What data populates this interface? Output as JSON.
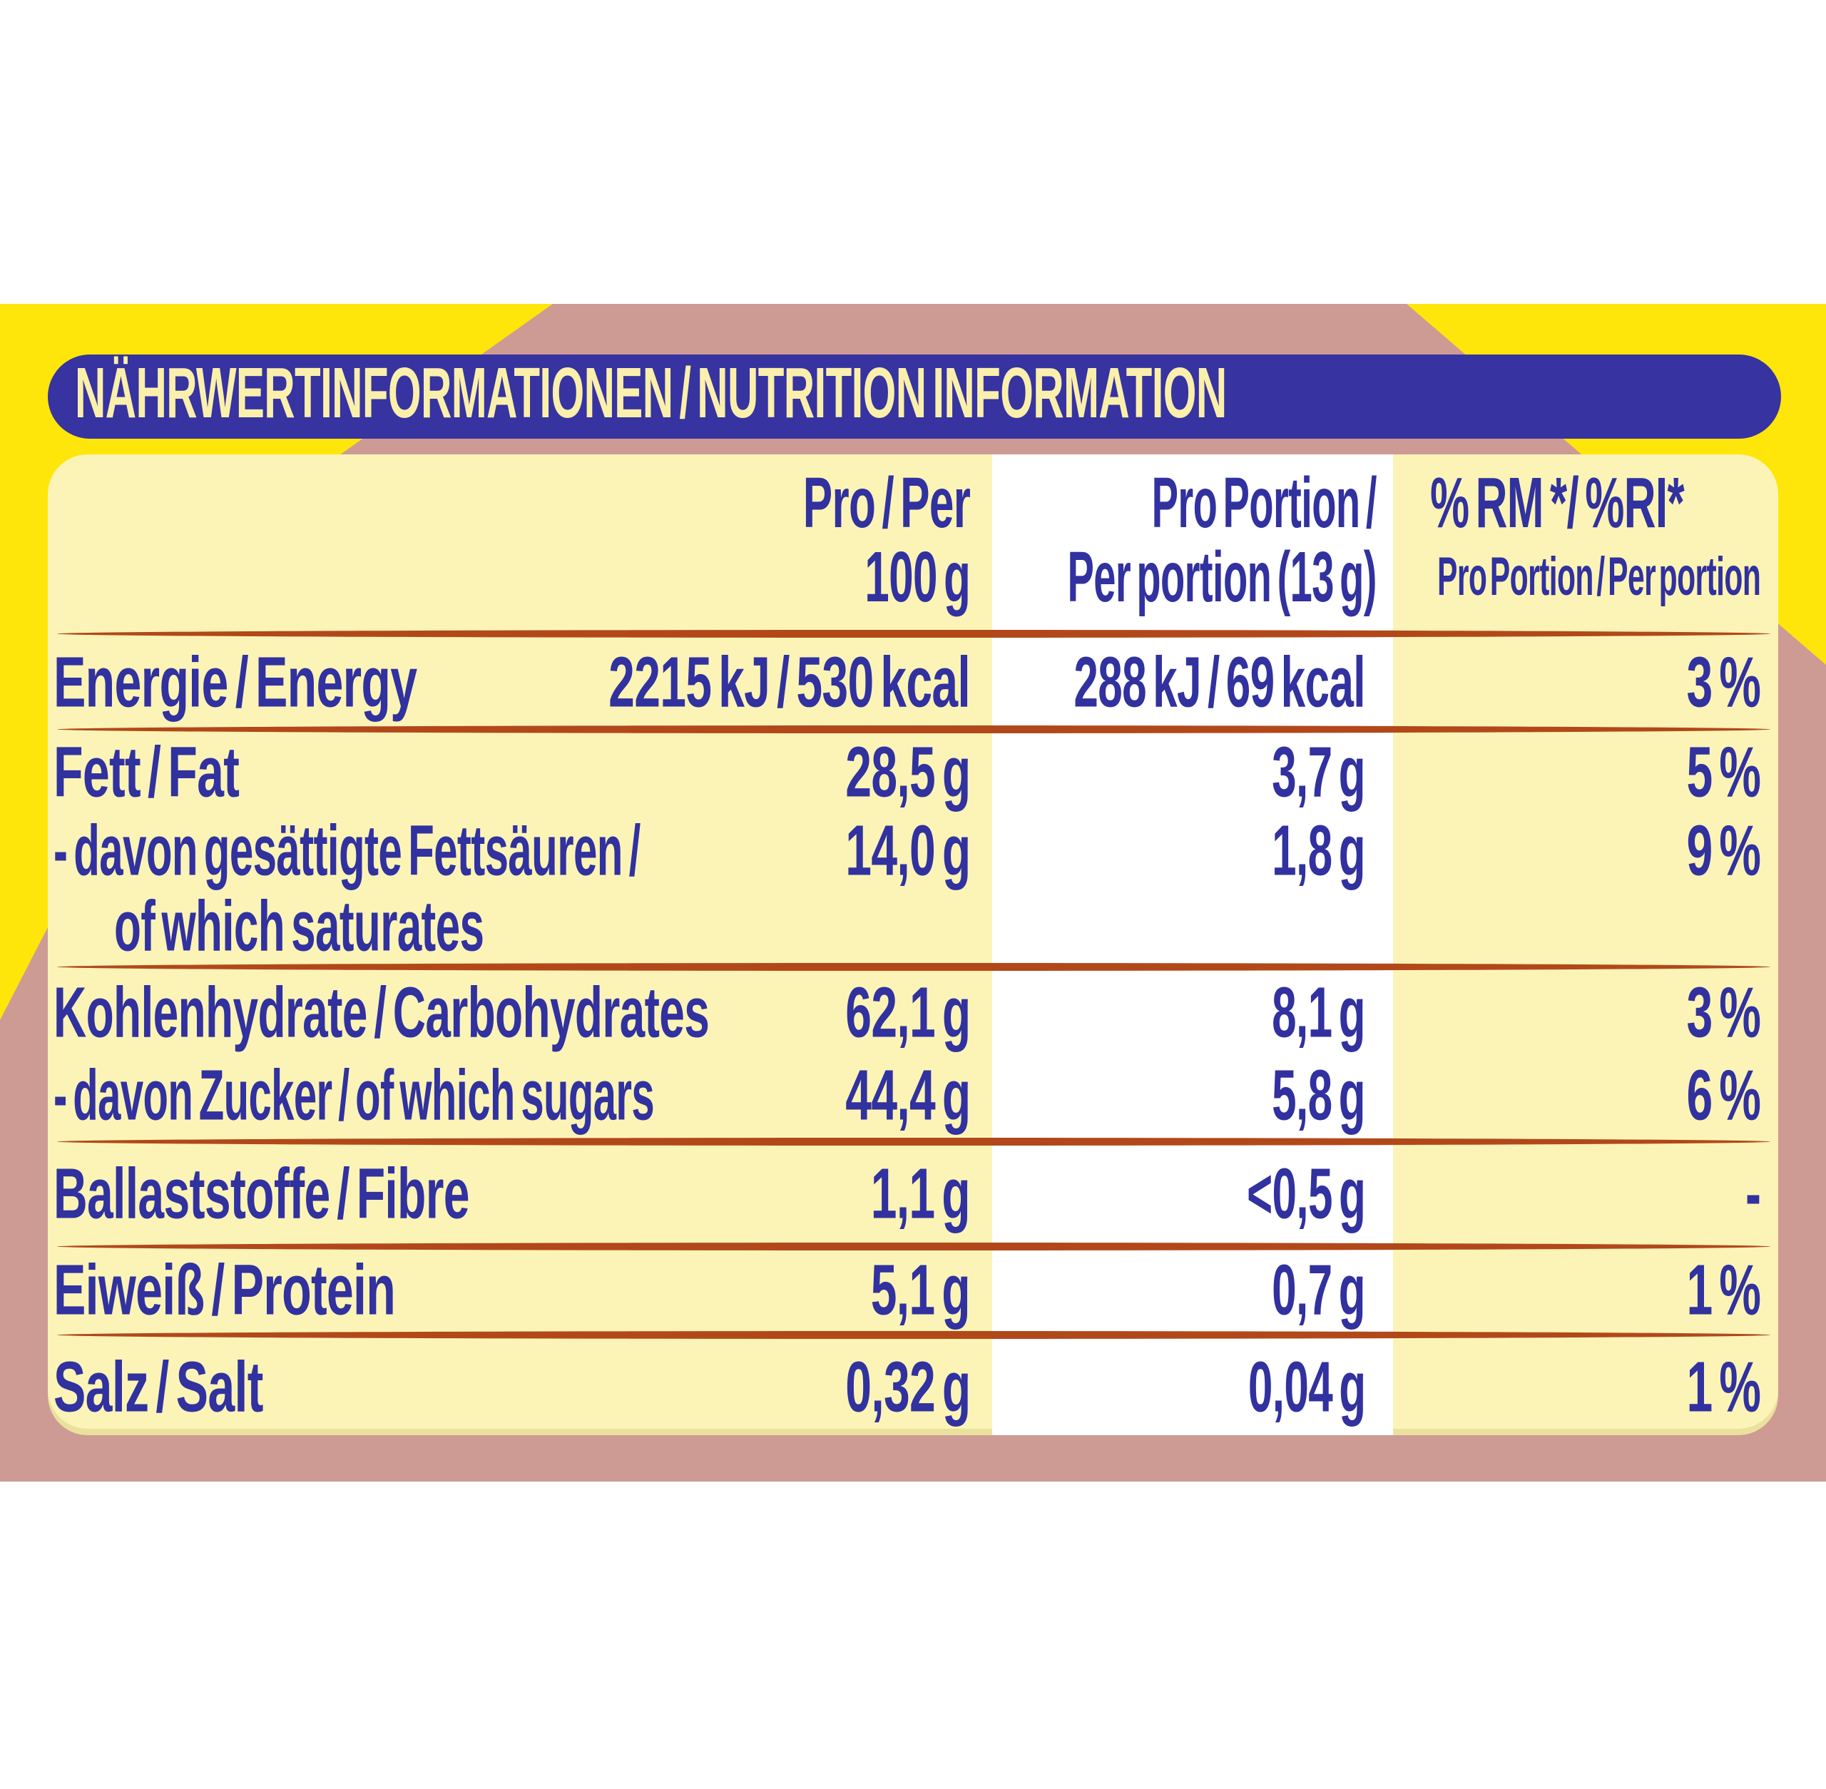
{
  "colors": {
    "background": "#FFFFFF",
    "backdrop_yellow": "#FFE60A",
    "accent_pink": "#CD9B94",
    "title_bar_blue": "#3733A0",
    "table_pale_yellow": "#FBF4B6",
    "title_text_cream": "#FAF0AC",
    "text_blue": "#31319F",
    "separator_orange": "#B2481A",
    "portion_column_white": "#FFFFFF"
  },
  "title_bar": {
    "title": "NÄHRWERTINFORMATIONEN / NUTRITION INFORMATION"
  },
  "table": {
    "header": {
      "per100": [
        "Pro / Per",
        "100 g"
      ],
      "portion": [
        "Pro Portion /",
        "Per portion (13 g)"
      ],
      "ri": [
        "% RM */ %RI*",
        "Pro Portion / Per portion"
      ]
    },
    "rows": [
      {
        "label": "Energie / Energy",
        "per100": "2215 kJ / 530 kcal",
        "portion": "288 kJ / 69 kcal",
        "ri": "3 %"
      },
      {
        "label": "Fett / Fat",
        "per100": "28,5 g",
        "portion": "3,7 g",
        "ri": "5 %"
      },
      {
        "label": "- davon gesättigte Fettsäuren /",
        "label2": "of which saturates",
        "per100": "14,0 g",
        "portion": "1,8 g",
        "ri": "9 %"
      },
      {
        "label": "Kohlenhydrate / Carbohydrates",
        "per100": "62,1 g",
        "portion": "8,1 g",
        "ri": "3 %"
      },
      {
        "label": "- davon Zucker / of which sugars",
        "per100": "44,4 g",
        "portion": "5,8 g",
        "ri": "6 %"
      },
      {
        "label": "Ballaststoffe / Fibre",
        "per100": "1,1 g",
        "portion": "<0,5 g",
        "ri": "-"
      },
      {
        "label": "Eiweiß / Protein",
        "per100": "5,1 g",
        "portion": "0,7 g",
        "ri": "1 %"
      },
      {
        "label": "Salz / Salt",
        "per100": "0,32 g",
        "portion": "0,04 g",
        "ri": "1 %"
      }
    ]
  }
}
